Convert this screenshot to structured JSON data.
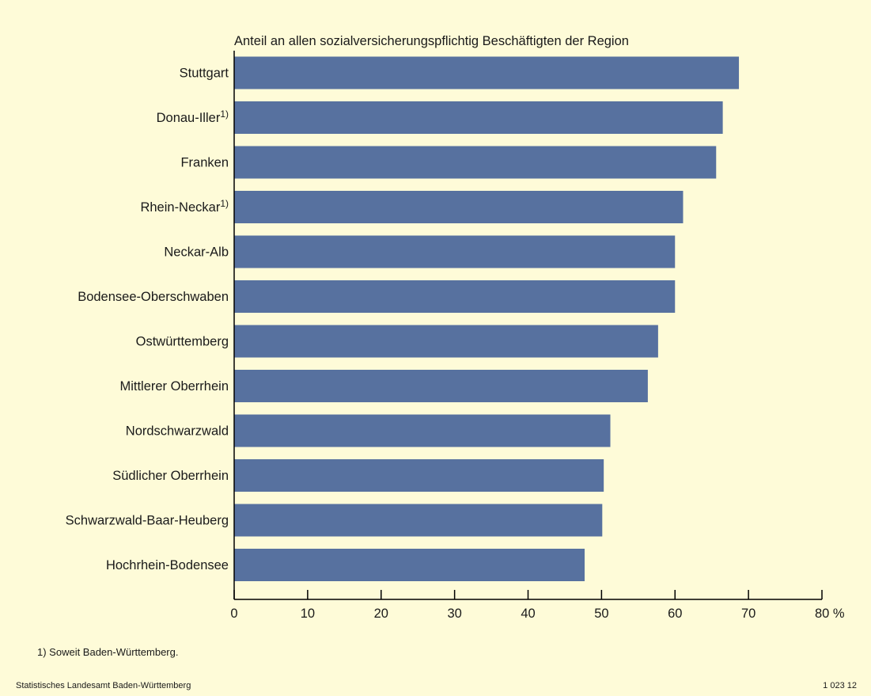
{
  "colors": {
    "background": "#fefbd8",
    "bar": "#57719f",
    "axis": "#000000"
  },
  "chart_data": {
    "type": "bar",
    "orientation": "horizontal",
    "title": "Anteil an allen sozialversicherungspflichtig Beschäftigten der Region",
    "categories": [
      {
        "label": "Stuttgart",
        "sup": ""
      },
      {
        "label": "Donau-Iller",
        "sup": "1)"
      },
      {
        "label": "Franken",
        "sup": ""
      },
      {
        "label": "Rhein-Neckar",
        "sup": "1)"
      },
      {
        "label": "Neckar-Alb",
        "sup": ""
      },
      {
        "label": "Bodensee-Oberschwaben",
        "sup": ""
      },
      {
        "label": "Ostwürttemberg",
        "sup": ""
      },
      {
        "label": "Mittlerer Oberrhein",
        "sup": ""
      },
      {
        "label": "Nordschwarzwald",
        "sup": ""
      },
      {
        "label": "Südlicher Oberrhein",
        "sup": ""
      },
      {
        "label": "Schwarzwald-Baar-Heuberg",
        "sup": ""
      },
      {
        "label": "Hochrhein-Bodensee",
        "sup": ""
      }
    ],
    "values": [
      68.7,
      66.5,
      65.6,
      61.1,
      60.0,
      60.0,
      57.7,
      56.3,
      51.2,
      50.3,
      50.1,
      47.7
    ],
    "xlim": [
      0,
      80
    ],
    "xticks": [
      0,
      10,
      20,
      30,
      40,
      50,
      60,
      70,
      80
    ],
    "xtick_labels": [
      "0",
      "10",
      "20",
      "30",
      "40",
      "50",
      "60",
      "70",
      "80 %"
    ],
    "grid": false
  },
  "footnote": "1) Soweit Baden-Württemberg.",
  "source": "Statistisches Landesamt Baden-Württemberg",
  "figure_id": "1 023 12"
}
